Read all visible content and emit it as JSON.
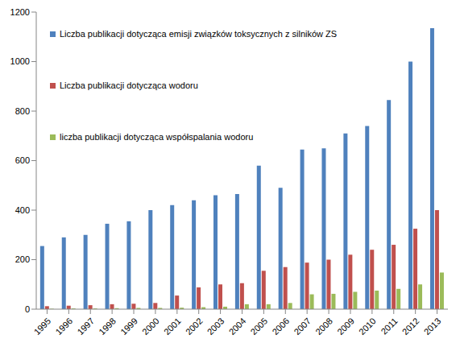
{
  "chart_data": {
    "type": "bar",
    "categories": [
      "1995",
      "1996",
      "1997",
      "1998",
      "1999",
      "2000",
      "2001",
      "2002",
      "2003",
      "2004",
      "2005",
      "2006",
      "2007",
      "2008",
      "2009",
      "2010",
      "2011",
      "2012",
      "2013"
    ],
    "series": [
      {
        "name": "Liczba publikacji dotycząca emisji związków toksycznych z silników ZS",
        "color": "#4f81bd",
        "values": [
          255,
          290,
          300,
          345,
          355,
          400,
          420,
          440,
          460,
          465,
          580,
          490,
          645,
          650,
          710,
          740,
          845,
          1000,
          1135
        ]
      },
      {
        "name": "Liczba publikacji dotycząca wodoru",
        "color": "#c0504d",
        "values": [
          12,
          14,
          16,
          20,
          22,
          25,
          55,
          88,
          100,
          105,
          155,
          170,
          188,
          200,
          220,
          240,
          260,
          325,
          400
        ]
      },
      {
        "name": "liczba publikacji dotycząca współspalania wodoru",
        "color": "#9bbb59",
        "values": [
          2,
          3,
          3,
          4,
          5,
          5,
          6,
          8,
          10,
          20,
          20,
          25,
          60,
          62,
          70,
          75,
          82,
          100,
          148
        ]
      }
    ],
    "ylim": [
      0,
      1200
    ],
    "yticks": [
      0,
      200,
      400,
      600,
      800,
      1000,
      1200
    ],
    "grid": false,
    "legend": "top-left"
  }
}
